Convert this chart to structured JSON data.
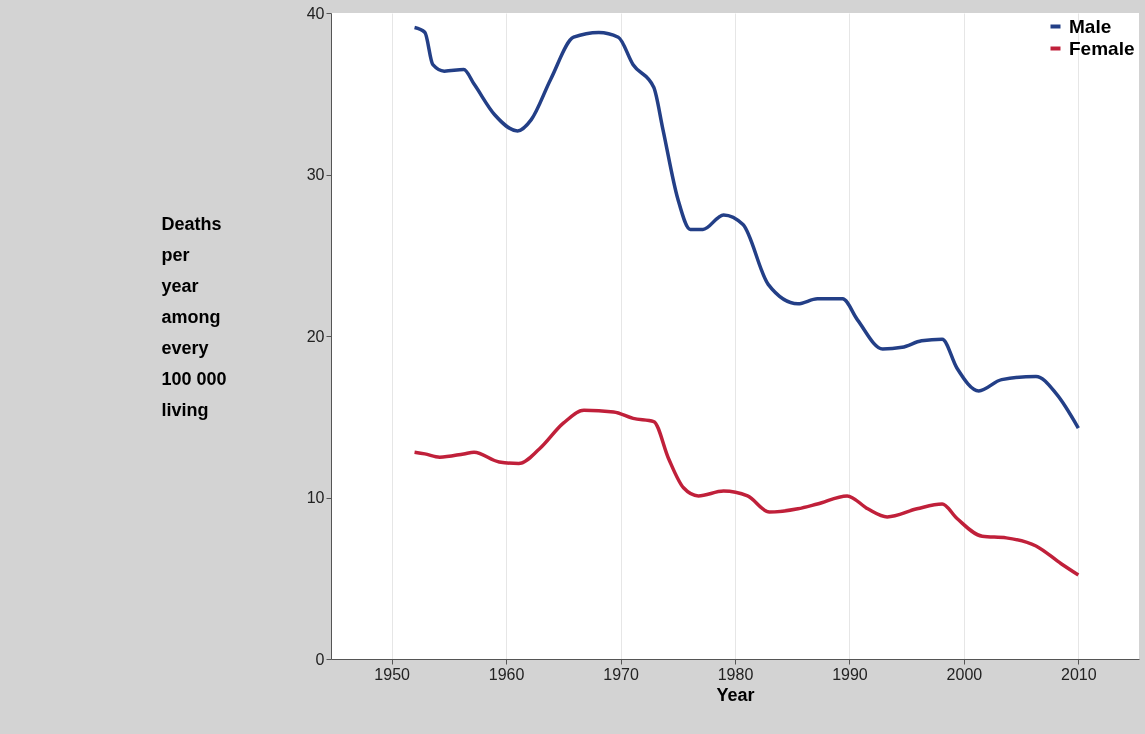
{
  "chart_data": {
    "type": "line",
    "xlabel": "Year",
    "ylabel": "Deaths per year among every 100 000 living",
    "xlim": [
      1944.7,
      2015.3
    ],
    "ylim": [
      0,
      40
    ],
    "xticks": [
      1950,
      1960,
      1970,
      1980,
      1990,
      2000,
      2010
    ],
    "yticks": [
      0,
      10,
      20,
      30,
      40
    ],
    "grid": "x",
    "legend": "top right",
    "marker": "none",
    "line_style": "solid",
    "series": [
      {
        "name": "Male",
        "color": "#233f87",
        "x": [
          1952,
          1952.9,
          1953.6,
          1954.6,
          1956.3,
          1957.2,
          1959,
          1961,
          1962.2,
          1963.9,
          1965.9,
          1968.1,
          1969.8,
          1971.1,
          1972.9,
          1973.7,
          1975,
          1976.1,
          1977.2,
          1979,
          1980.7,
          1982.9,
          1985.5,
          1987.2,
          1989.4,
          1990.7,
          1992.9,
          1994.6,
          1996.3,
          1998.1,
          1999.4,
          2001.3,
          2003.3,
          2006.3,
          2008.1,
          2010
        ],
        "values": [
          39.1,
          38.8,
          36.8,
          36.4,
          36.5,
          35.6,
          33.7,
          32.7,
          33.4,
          35.9,
          38.5,
          38.8,
          38.5,
          36.8,
          35.4,
          32.8,
          28.5,
          26.6,
          26.6,
          27.5,
          26.9,
          23.2,
          22.0,
          22.3,
          22.3,
          21.0,
          19.2,
          19.3,
          19.7,
          19.8,
          18.0,
          16.6,
          17.3,
          17.5,
          16.4,
          14.3
        ]
      },
      {
        "name": "Female",
        "color": "#c0203a",
        "x": [
          1952,
          1952.9,
          1954.2,
          1956.3,
          1957.2,
          1959.4,
          1961.1,
          1962.9,
          1965,
          1966.8,
          1969.4,
          1971.1,
          1972.9,
          1974.2,
          1975.5,
          1976.8,
          1979,
          1981.1,
          1983,
          1985.5,
          1987.2,
          1989.8,
          1991.6,
          1993.3,
          1995.9,
          1998.1,
          1999.4,
          2001.6,
          2003.7,
          2006.3,
          2008.5,
          2010
        ],
        "values": [
          12.8,
          12.7,
          12.5,
          12.7,
          12.8,
          12.2,
          12.1,
          13.0,
          14.6,
          15.4,
          15.3,
          14.9,
          14.7,
          12.4,
          10.6,
          10.1,
          10.4,
          10.1,
          9.1,
          9.3,
          9.6,
          10.1,
          9.3,
          8.8,
          9.3,
          9.6,
          8.7,
          7.6,
          7.5,
          7.0,
          5.9,
          5.2
        ]
      }
    ]
  }
}
